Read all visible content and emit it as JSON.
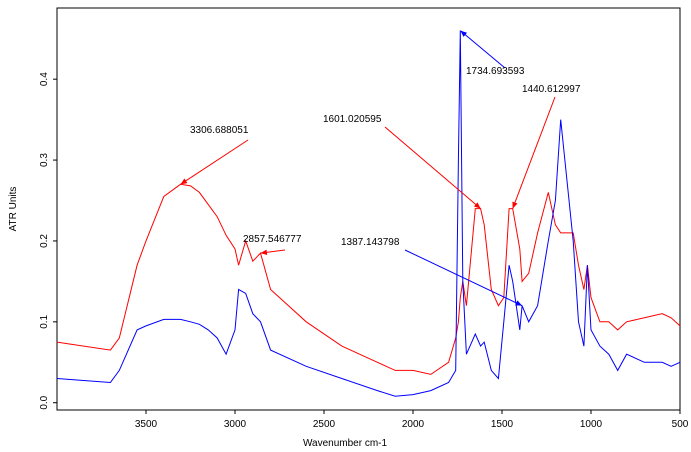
{
  "chart_data": {
    "type": "line",
    "xlabel": "Wavenumber cm-1",
    "ylabel": "ATR Units",
    "x": [
      4000,
      3700,
      3650,
      3550,
      3500,
      3400,
      3306,
      3250,
      3200,
      3150,
      3100,
      3050,
      3000,
      2980,
      2940,
      2900,
      2857,
      2800,
      2600,
      2400,
      2200,
      2100,
      2000,
      1900,
      1800,
      1760,
      1745,
      1734,
      1720,
      1700,
      1650,
      1620,
      1600,
      1560,
      1520,
      1490,
      1460,
      1440,
      1400,
      1387,
      1350,
      1300,
      1240,
      1200,
      1170,
      1100,
      1070,
      1040,
      1020,
      1000,
      950,
      900,
      850,
      800,
      700,
      600,
      550,
      500
    ],
    "series": [
      {
        "color": "#ff0000",
        "values": [
          0.075,
          0.065,
          0.08,
          0.17,
          0.2,
          0.255,
          0.27,
          0.268,
          0.26,
          0.245,
          0.23,
          0.207,
          0.19,
          0.17,
          0.2,
          0.175,
          0.185,
          0.14,
          0.1,
          0.07,
          0.05,
          0.04,
          0.04,
          0.035,
          0.05,
          0.08,
          0.1,
          0.13,
          0.15,
          0.12,
          0.24,
          0.24,
          0.22,
          0.14,
          0.12,
          0.13,
          0.24,
          0.24,
          0.19,
          0.15,
          0.16,
          0.21,
          0.26,
          0.22,
          0.21,
          0.21,
          0.17,
          0.14,
          0.17,
          0.13,
          0.1,
          0.1,
          0.09,
          0.1,
          0.105,
          0.11,
          0.105,
          0.095
        ]
      },
      {
        "color": "#0000ff",
        "values": [
          0.03,
          0.025,
          0.04,
          0.09,
          0.095,
          0.103,
          0.103,
          0.1,
          0.097,
          0.09,
          0.08,
          0.06,
          0.09,
          0.14,
          0.135,
          0.11,
          0.1,
          0.065,
          0.045,
          0.03,
          0.015,
          0.008,
          0.01,
          0.015,
          0.025,
          0.04,
          0.3,
          0.46,
          0.15,
          0.06,
          0.085,
          0.07,
          0.075,
          0.04,
          0.03,
          0.1,
          0.17,
          0.15,
          0.09,
          0.12,
          0.1,
          0.12,
          0.2,
          0.25,
          0.35,
          0.2,
          0.1,
          0.07,
          0.17,
          0.09,
          0.07,
          0.06,
          0.04,
          0.06,
          0.05,
          0.05,
          0.045,
          0.05
        ]
      }
    ],
    "annotations": [
      {
        "text": "3306.688051",
        "x": 3306,
        "y": 0.27,
        "color": "#ff0000"
      },
      {
        "text": "2857.546777",
        "x": 2857,
        "y": 0.185,
        "color": "#ff0000"
      },
      {
        "text": "1601.020595",
        "x": 1620,
        "y": 0.24,
        "color": "#ff0000"
      },
      {
        "text": "1440.612997",
        "x": 1440,
        "y": 0.24,
        "color": "#ff0000"
      },
      {
        "text": "1734.693593",
        "x": 1734,
        "y": 0.46,
        "color": "#0000ff"
      },
      {
        "text": "1387.143798",
        "x": 1387,
        "y": 0.12,
        "color": "#0000ff"
      }
    ],
    "xlim": [
      4000,
      500
    ],
    "ylim": [
      -0.009,
      0.488
    ],
    "xticks": [
      3500,
      3000,
      2500,
      2000,
      1500,
      1000,
      500
    ],
    "yticks": [
      {
        "value": 0,
        "label": "0.0"
      },
      0.1,
      0.2,
      0.3,
      0.4
    ]
  }
}
